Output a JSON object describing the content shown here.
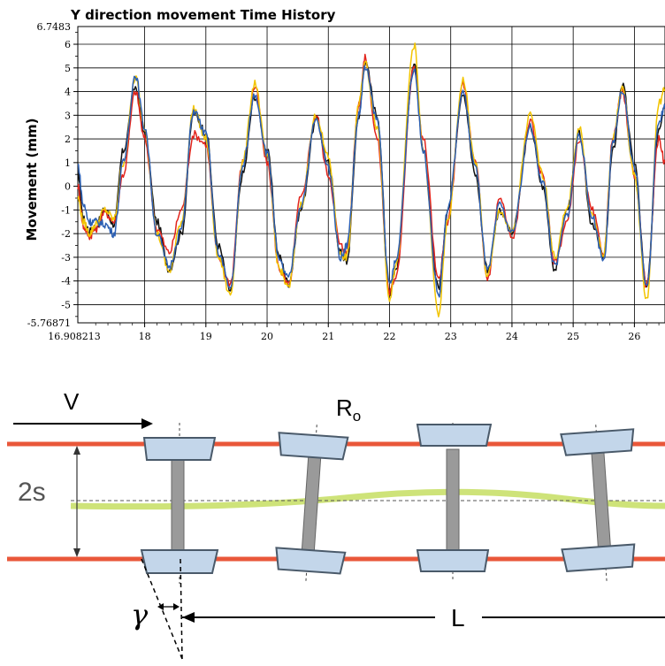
{
  "chart_data": {
    "type": "line",
    "title": "Y direction movement Time History",
    "ylabel": "Movement (mm)",
    "xlabel": "",
    "xlim": [
      16.908213,
      26.5
    ],
    "ylim": [
      -5.76871,
      6.7483
    ],
    "ymin_label": "-5.76871",
    "ymax_label": "6.7483",
    "xmin_label": "16.908213",
    "xticks": [
      18,
      19,
      20,
      21,
      22,
      23,
      24,
      25,
      26
    ],
    "yticks": [
      -5,
      -4,
      -3,
      -2,
      -1,
      0,
      1,
      2,
      3,
      4,
      5,
      6
    ],
    "grid": true,
    "series": [
      {
        "color": "#111111",
        "values": [
          [
            16.91,
            0.6
          ],
          [
            17.0,
            -1.4
          ],
          [
            17.1,
            -1.9
          ],
          [
            17.2,
            -1.7
          ],
          [
            17.35,
            -1.0
          ],
          [
            17.5,
            -1.6
          ],
          [
            17.65,
            1.5
          ],
          [
            17.85,
            4.2
          ],
          [
            18.0,
            2.2
          ],
          [
            18.2,
            -1.5
          ],
          [
            18.4,
            -3.5
          ],
          [
            18.6,
            -2.0
          ],
          [
            18.8,
            3.1
          ],
          [
            19.0,
            2.3
          ],
          [
            19.2,
            -2.5
          ],
          [
            19.4,
            -4.4
          ],
          [
            19.6,
            0.5
          ],
          [
            19.8,
            3.8
          ],
          [
            20.0,
            1.5
          ],
          [
            20.2,
            -3.0
          ],
          [
            20.35,
            -4.1
          ],
          [
            20.55,
            -1.0
          ],
          [
            20.8,
            2.8
          ],
          [
            21.0,
            1.0
          ],
          [
            21.2,
            -2.8
          ],
          [
            21.3,
            -3.2
          ],
          [
            21.5,
            3.0
          ],
          [
            21.6,
            5.2
          ],
          [
            21.8,
            3.0
          ],
          [
            22.0,
            -4.5
          ],
          [
            22.1,
            -3.5
          ],
          [
            22.4,
            5.2
          ],
          [
            22.55,
            1.5
          ],
          [
            22.8,
            -4.3
          ],
          [
            22.95,
            -1.0
          ],
          [
            23.2,
            4.0
          ],
          [
            23.4,
            0.5
          ],
          [
            23.6,
            -3.5
          ],
          [
            23.8,
            -1.0
          ],
          [
            24.0,
            -2.0
          ],
          [
            24.3,
            2.5
          ],
          [
            24.5,
            0.0
          ],
          [
            24.7,
            -3.5
          ],
          [
            24.9,
            -1.0
          ],
          [
            25.1,
            2.2
          ],
          [
            25.3,
            -1.5
          ],
          [
            25.5,
            -3.0
          ],
          [
            25.65,
            1.5
          ],
          [
            25.8,
            4.3
          ],
          [
            26.0,
            1.0
          ],
          [
            26.2,
            -4.3
          ],
          [
            26.4,
            2.5
          ],
          [
            26.5,
            3.5
          ]
        ]
      },
      {
        "color": "#e2241c",
        "values": [
          [
            16.91,
            0.0
          ],
          [
            17.0,
            -1.7
          ],
          [
            17.1,
            -2.1
          ],
          [
            17.2,
            -1.8
          ],
          [
            17.35,
            -1.1
          ],
          [
            17.5,
            -1.5
          ],
          [
            17.65,
            0.5
          ],
          [
            17.85,
            4.0
          ],
          [
            18.0,
            2.0
          ],
          [
            18.2,
            -1.8
          ],
          [
            18.4,
            -2.8
          ],
          [
            18.6,
            -1.0
          ],
          [
            18.8,
            2.2
          ],
          [
            19.0,
            1.8
          ],
          [
            19.2,
            -3.0
          ],
          [
            19.4,
            -4.1
          ],
          [
            19.6,
            1.0
          ],
          [
            19.8,
            4.2
          ],
          [
            20.0,
            1.0
          ],
          [
            20.2,
            -3.5
          ],
          [
            20.35,
            -4.2
          ],
          [
            20.55,
            -0.5
          ],
          [
            20.8,
            3.0
          ],
          [
            21.0,
            0.5
          ],
          [
            21.2,
            -2.5
          ],
          [
            21.3,
            -2.8
          ],
          [
            21.5,
            3.5
          ],
          [
            21.6,
            5.4
          ],
          [
            21.8,
            2.0
          ],
          [
            22.0,
            -4.5
          ],
          [
            22.1,
            -3.8
          ],
          [
            22.4,
            5.0
          ],
          [
            22.55,
            2.0
          ],
          [
            22.8,
            -4.0
          ],
          [
            22.95,
            -1.5
          ],
          [
            23.2,
            4.3
          ],
          [
            23.4,
            1.0
          ],
          [
            23.6,
            -3.9
          ],
          [
            23.8,
            -0.5
          ],
          [
            24.0,
            -2.2
          ],
          [
            24.3,
            2.7
          ],
          [
            24.5,
            0.5
          ],
          [
            24.7,
            -3.2
          ],
          [
            24.9,
            -1.5
          ],
          [
            25.1,
            2.0
          ],
          [
            25.3,
            -1.0
          ],
          [
            25.5,
            -2.8
          ],
          [
            25.65,
            2.0
          ],
          [
            25.8,
            4.0
          ],
          [
            26.0,
            0.5
          ],
          [
            26.2,
            -4.2
          ],
          [
            26.4,
            2.0
          ],
          [
            26.5,
            1.0
          ]
        ]
      },
      {
        "color": "#f2c400",
        "values": [
          [
            16.91,
            -0.5
          ],
          [
            17.0,
            -1.5
          ],
          [
            17.1,
            -2.0
          ],
          [
            17.2,
            -1.6
          ],
          [
            17.35,
            -1.0
          ],
          [
            17.5,
            -1.4
          ],
          [
            17.65,
            1.0
          ],
          [
            17.85,
            4.6
          ],
          [
            18.0,
            2.5
          ],
          [
            18.2,
            -2.0
          ],
          [
            18.4,
            -3.6
          ],
          [
            18.6,
            -1.5
          ],
          [
            18.8,
            3.3
          ],
          [
            19.0,
            2.0
          ],
          [
            19.2,
            -3.0
          ],
          [
            19.4,
            -4.6
          ],
          [
            19.6,
            1.0
          ],
          [
            19.8,
            4.4
          ],
          [
            20.0,
            1.2
          ],
          [
            20.2,
            -3.5
          ],
          [
            20.35,
            -4.3
          ],
          [
            20.55,
            -0.8
          ],
          [
            20.8,
            3.0
          ],
          [
            21.0,
            1.2
          ],
          [
            21.2,
            -2.9
          ],
          [
            21.3,
            -3.0
          ],
          [
            21.5,
            3.5
          ],
          [
            21.6,
            5.2
          ],
          [
            21.8,
            2.5
          ],
          [
            22.0,
            -4.7
          ],
          [
            22.1,
            -3.5
          ],
          [
            22.4,
            6.0
          ],
          [
            22.55,
            1.5
          ],
          [
            22.8,
            -5.4
          ],
          [
            22.95,
            -1.5
          ],
          [
            23.2,
            4.5
          ],
          [
            23.4,
            1.0
          ],
          [
            23.6,
            -3.8
          ],
          [
            23.8,
            -1.0
          ],
          [
            24.0,
            -2.0
          ],
          [
            24.3,
            3.0
          ],
          [
            24.5,
            0.5
          ],
          [
            24.7,
            -3.0
          ],
          [
            24.9,
            -1.0
          ],
          [
            25.1,
            2.5
          ],
          [
            25.3,
            -1.2
          ],
          [
            25.5,
            -2.9
          ],
          [
            25.65,
            2.0
          ],
          [
            25.8,
            4.2
          ],
          [
            26.0,
            0.5
          ],
          [
            26.2,
            -4.8
          ],
          [
            26.4,
            3.5
          ],
          [
            26.5,
            4.1
          ]
        ]
      },
      {
        "color": "#2b5fb3",
        "values": [
          [
            16.91,
            0.9
          ],
          [
            17.0,
            -0.8
          ],
          [
            17.1,
            -1.5
          ],
          [
            17.2,
            -1.5
          ],
          [
            17.35,
            -1.6
          ],
          [
            17.5,
            -2.0
          ],
          [
            17.65,
            1.0
          ],
          [
            17.85,
            4.7
          ],
          [
            18.0,
            2.5
          ],
          [
            18.2,
            -2.0
          ],
          [
            18.4,
            -3.4
          ],
          [
            18.6,
            -1.8
          ],
          [
            18.8,
            3.2
          ],
          [
            19.0,
            2.2
          ],
          [
            19.2,
            -2.8
          ],
          [
            19.4,
            -4.3
          ],
          [
            19.6,
            0.8
          ],
          [
            19.8,
            3.9
          ],
          [
            20.0,
            1.4
          ],
          [
            20.2,
            -3.2
          ],
          [
            20.35,
            -3.9
          ],
          [
            20.55,
            -0.8
          ],
          [
            20.8,
            2.8
          ],
          [
            21.0,
            0.8
          ],
          [
            21.2,
            -3.0
          ],
          [
            21.3,
            -2.5
          ],
          [
            21.5,
            3.0
          ],
          [
            21.6,
            5.0
          ],
          [
            21.8,
            2.8
          ],
          [
            22.0,
            -4.2
          ],
          [
            22.1,
            -3.2
          ],
          [
            22.4,
            5.0
          ],
          [
            22.55,
            1.5
          ],
          [
            22.8,
            -4.6
          ],
          [
            22.95,
            -1.0
          ],
          [
            23.2,
            4.0
          ],
          [
            23.4,
            0.8
          ],
          [
            23.6,
            -3.6
          ],
          [
            23.8,
            -0.8
          ],
          [
            24.0,
            -2.0
          ],
          [
            24.3,
            2.5
          ],
          [
            24.5,
            0.2
          ],
          [
            24.7,
            -3.4
          ],
          [
            24.9,
            -1.2
          ],
          [
            25.1,
            2.2
          ],
          [
            25.3,
            -1.2
          ],
          [
            25.5,
            -3.1
          ],
          [
            25.65,
            1.8
          ],
          [
            25.8,
            4.0
          ],
          [
            26.0,
            0.8
          ],
          [
            26.2,
            -4.3
          ],
          [
            26.4,
            2.8
          ],
          [
            26.5,
            3.3
          ]
        ]
      }
    ]
  },
  "diagram": {
    "v_label": "V",
    "r_label": "R",
    "r_sub": "o",
    "s_label": "2s",
    "gamma_label": "γ",
    "l_label": "L"
  },
  "colors": {
    "rail": "#e9573a",
    "centerline": "#c9e06a",
    "pad_fill": "#c3d6ea",
    "pad_stroke": "#4a5a6a",
    "axle": "#8f8f8f"
  }
}
